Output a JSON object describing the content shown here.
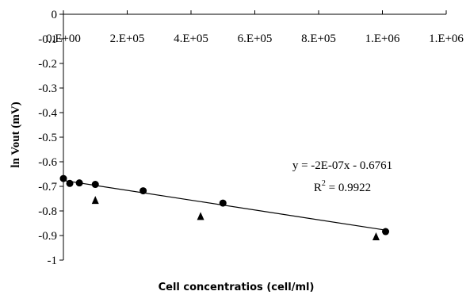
{
  "chart_data": {
    "type": "scatter",
    "xlabel": "Cell concentratios (cell/ml)",
    "ylabel": "ln Vout (mV)",
    "xlim": [
      0,
      1200000
    ],
    "ylim": [
      -1,
      0
    ],
    "x_ticks": [
      0,
      200000,
      400000,
      600000,
      800000,
      1000000,
      1200000
    ],
    "x_tick_labels": [
      "0.E+00",
      "2.E+05",
      "4.E+05",
      "6.E+05",
      "8.E+05",
      "1.E+06",
      "1.E+06"
    ],
    "y_ticks": [
      0,
      -0.1,
      -0.2,
      -0.3,
      -0.4,
      -0.5,
      -0.6,
      -0.7,
      -0.8,
      -0.9,
      -1
    ],
    "y_tick_labels": [
      "0",
      "-0.1",
      "-0.2",
      "-0.3",
      "-0.4",
      "-0.5",
      "-0.6",
      "-0.7",
      "-0.8",
      "-0.9",
      "-1"
    ],
    "grid": false,
    "series": [
      {
        "marker": "circle",
        "color": "#000000",
        "points": [
          {
            "x": 0,
            "y": -0.668
          },
          {
            "x": 20000,
            "y": -0.688
          },
          {
            "x": 50000,
            "y": -0.686
          },
          {
            "x": 100000,
            "y": -0.692
          },
          {
            "x": 250000,
            "y": -0.718
          },
          {
            "x": 500000,
            "y": -0.768
          },
          {
            "x": 1010000,
            "y": -0.884
          }
        ]
      },
      {
        "marker": "triangle",
        "color": "#000000",
        "points": [
          {
            "x": 100000,
            "y": -0.757
          },
          {
            "x": 430000,
            "y": -0.822
          },
          {
            "x": 980000,
            "y": -0.905
          }
        ]
      }
    ],
    "trendline": {
      "slope": -2e-07,
      "intercept": -0.6761,
      "x_range": [
        0,
        1010000
      ]
    },
    "annotations": {
      "equation": "y = -2E-07x - 0.6761",
      "r2_prefix": "R",
      "r2_exponent": "2",
      "r2_suffix": " = 0.9922"
    }
  }
}
